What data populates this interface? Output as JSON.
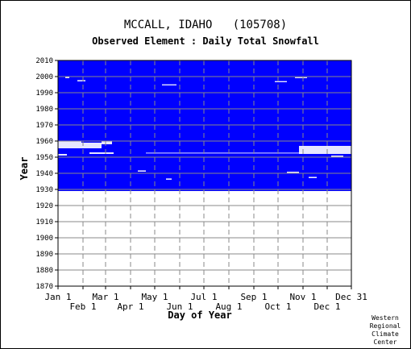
{
  "chart_data": {
    "type": "heatmap",
    "title": "MCCALL, IDAHO   (105708)",
    "subtitle": "Observed Element : Daily Total Snowfall",
    "xlabel": "Day of Year",
    "ylabel": "Year",
    "xlim": [
      1,
      365
    ],
    "ylim": [
      1870,
      2010
    ],
    "x_ticks_upper": [
      {
        "label": "Jan 1",
        "day": 1
      },
      {
        "label": "Mar 1",
        "day": 60
      },
      {
        "label": "May 1",
        "day": 121
      },
      {
        "label": "Jul 1",
        "day": 182
      },
      {
        "label": "Sep 1",
        "day": 244
      },
      {
        "label": "Nov 1",
        "day": 305
      },
      {
        "label": "Dec 31",
        "day": 365
      }
    ],
    "x_ticks_lower": [
      {
        "label": "Feb 1",
        "day": 32
      },
      {
        "label": "Apr 1",
        "day": 91
      },
      {
        "label": "Jun 1",
        "day": 152
      },
      {
        "label": "Aug 1",
        "day": 213
      },
      {
        "label": "Oct 1",
        "day": 274
      },
      {
        "label": "Dec 1",
        "day": 335
      }
    ],
    "y_ticks": [
      1870,
      1880,
      1890,
      1900,
      1910,
      1920,
      1930,
      1940,
      1950,
      1960,
      1970,
      1980,
      1990,
      2000,
      2010
    ],
    "record_period": [
      1929,
      2010
    ],
    "colors": {
      "observed": "#0000ff",
      "missing": "#ffffff",
      "grid": "#888888"
    },
    "missing_records": [
      {
        "start_day": 1,
        "end_day": 30,
        "start_year": 1955.5,
        "end_year": 1960
      },
      {
        "start_day": 30,
        "end_day": 55,
        "start_year": 1955.5,
        "end_year": 1959
      },
      {
        "start_day": 55,
        "end_day": 68,
        "start_year": 1958,
        "end_year": 1960
      },
      {
        "start_day": 1,
        "end_day": 12,
        "start_year": 1951,
        "end_year": 1952
      },
      {
        "start_day": 40,
        "end_day": 70,
        "start_year": 1952,
        "end_year": 1953
      },
      {
        "start_day": 300,
        "end_day": 365,
        "start_year": 1952,
        "end_year": 1957
      },
      {
        "start_day": 110,
        "end_day": 305,
        "start_year": 1952.3,
        "end_year": 1952.8
      },
      {
        "start_day": 130,
        "end_day": 148,
        "start_year": 1994.5,
        "end_year": 1995.2
      },
      {
        "start_day": 270,
        "end_day": 285,
        "start_year": 1996.5,
        "end_year": 1997.2
      },
      {
        "start_day": 295,
        "end_day": 310,
        "start_year": 1999,
        "end_year": 1999.6
      },
      {
        "start_day": 10,
        "end_day": 15,
        "start_year": 1999,
        "end_year": 2000
      },
      {
        "start_day": 25,
        "end_day": 35,
        "start_year": 1997,
        "end_year": 1997.8
      },
      {
        "start_day": 340,
        "end_day": 355,
        "start_year": 1950,
        "end_year": 1951
      },
      {
        "start_day": 312,
        "end_day": 322,
        "start_year": 1937,
        "end_year": 1937.8
      },
      {
        "start_day": 285,
        "end_day": 300,
        "start_year": 1940,
        "end_year": 1941
      },
      {
        "start_day": 100,
        "end_day": 110,
        "start_year": 1941,
        "end_year": 1941.8
      },
      {
        "start_day": 135,
        "end_day": 142,
        "start_year": 1936,
        "end_year": 1936.8
      }
    ],
    "credit": [
      "Western",
      "Regional",
      "Climate",
      "Center"
    ]
  }
}
